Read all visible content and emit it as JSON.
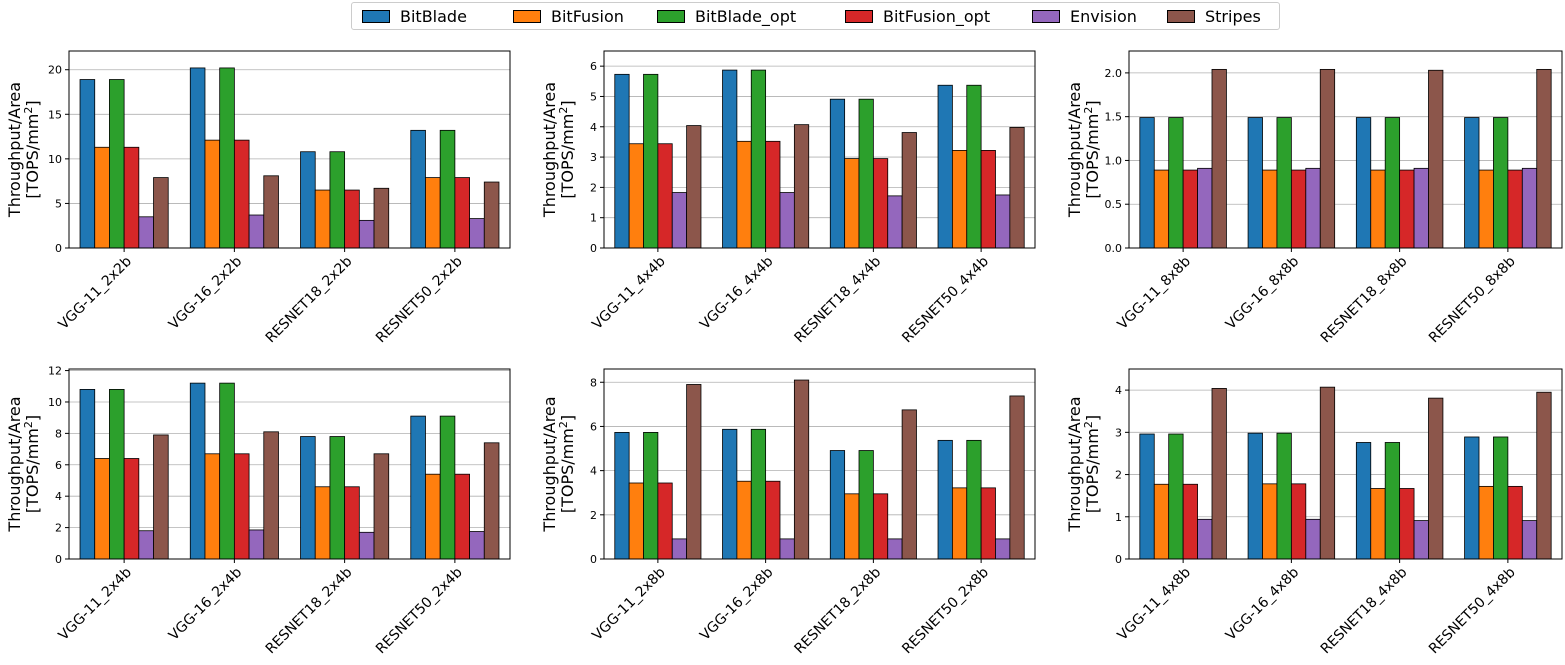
{
  "legend": {
    "items": [
      {
        "label": "BitBlade",
        "color": "#1f77b4"
      },
      {
        "label": "BitFusion",
        "color": "#ff7f0e"
      },
      {
        "label": "BitBlade_opt",
        "color": "#2ca02c"
      },
      {
        "label": "BitFusion_opt",
        "color": "#d62728"
      },
      {
        "label": "Envision",
        "color": "#9467bd"
      },
      {
        "label": "Stripes",
        "color": "#8c564b"
      }
    ]
  },
  "chart_data": [
    {
      "type": "bar",
      "ylabel_line1": "Throughput/Area",
      "ylabel_line2": "[TOPS/mm",
      "ylabel_sup": "2",
      "ylabel_close": "]",
      "categories": [
        "VGG-11_2x2b",
        "VGG-16_2x2b",
        "RESNET18_2x2b",
        "RESNET50_2x2b"
      ],
      "ylim": [
        0,
        22.1
      ],
      "yticks": [
        0,
        5,
        10,
        15,
        20
      ],
      "ytick_labels": [
        "0",
        "5",
        "10",
        "15",
        "20"
      ],
      "grid": true,
      "series": [
        {
          "name": "BitBlade",
          "values": [
            18.9,
            20.2,
            10.8,
            13.2
          ]
        },
        {
          "name": "BitFusion",
          "values": [
            11.3,
            12.1,
            6.5,
            7.9
          ]
        },
        {
          "name": "BitBlade_opt",
          "values": [
            18.9,
            20.2,
            10.8,
            13.2
          ]
        },
        {
          "name": "BitFusion_opt",
          "values": [
            11.3,
            12.1,
            6.5,
            7.9
          ]
        },
        {
          "name": "Envision",
          "values": [
            3.5,
            3.7,
            3.1,
            3.3
          ]
        },
        {
          "name": "Stripes",
          "values": [
            7.9,
            8.1,
            6.7,
            7.4
          ]
        }
      ]
    },
    {
      "type": "bar",
      "ylabel_line1": "Throughput/Area",
      "ylabel_line2": "[TOPS/mm",
      "ylabel_sup": "2",
      "ylabel_close": "]",
      "categories": [
        "VGG-11_4x4b",
        "VGG-16_4x4b",
        "RESNET18_4x4b",
        "RESNET50_4x4b"
      ],
      "ylim": [
        0,
        6.5
      ],
      "yticks": [
        0,
        1,
        2,
        3,
        4,
        5,
        6
      ],
      "ytick_labels": [
        "0",
        "1",
        "2",
        "3",
        "4",
        "5",
        "6"
      ],
      "grid": true,
      "series": [
        {
          "name": "BitBlade",
          "values": [
            5.73,
            5.87,
            4.91,
            5.37
          ]
        },
        {
          "name": "BitFusion",
          "values": [
            3.44,
            3.52,
            2.95,
            3.22
          ]
        },
        {
          "name": "BitBlade_opt",
          "values": [
            5.73,
            5.87,
            4.91,
            5.37
          ]
        },
        {
          "name": "BitFusion_opt",
          "values": [
            3.44,
            3.52,
            2.95,
            3.22
          ]
        },
        {
          "name": "Envision",
          "values": [
            1.83,
            1.83,
            1.72,
            1.75
          ]
        },
        {
          "name": "Stripes",
          "values": [
            4.04,
            4.07,
            3.81,
            3.98
          ]
        }
      ]
    },
    {
      "type": "bar",
      "ylabel_line1": "Throughput/Area",
      "ylabel_line2": "[TOPS/mm",
      "ylabel_sup": "2",
      "ylabel_close": "]",
      "categories": [
        "VGG-11_8x8b",
        "VGG-16_8x8b",
        "RESNET18_8x8b",
        "RESNET50_8x8b"
      ],
      "ylim": [
        0,
        2.25
      ],
      "yticks": [
        0,
        0.5,
        1.0,
        1.5,
        2.0
      ],
      "ytick_labels": [
        "0.0",
        "0.5",
        "1.0",
        "1.5",
        "2.0"
      ],
      "grid": true,
      "series": [
        {
          "name": "BitBlade",
          "values": [
            1.49,
            1.49,
            1.49,
            1.49
          ]
        },
        {
          "name": "BitFusion",
          "values": [
            0.89,
            0.89,
            0.89,
            0.89
          ]
        },
        {
          "name": "BitBlade_opt",
          "values": [
            1.49,
            1.49,
            1.49,
            1.49
          ]
        },
        {
          "name": "BitFusion_opt",
          "values": [
            0.89,
            0.89,
            0.89,
            0.89
          ]
        },
        {
          "name": "Envision",
          "values": [
            0.91,
            0.91,
            0.91,
            0.91
          ]
        },
        {
          "name": "Stripes",
          "values": [
            2.04,
            2.04,
            2.03,
            2.04
          ]
        }
      ]
    },
    {
      "type": "bar",
      "ylabel_line1": "Throughput/Area",
      "ylabel_line2": "[TOPS/mm",
      "ylabel_sup": "2",
      "ylabel_close": "]",
      "categories": [
        "VGG-11_2x4b",
        "VGG-16_2x4b",
        "RESNET18_2x4b",
        "RESNET50_2x4b"
      ],
      "ylim": [
        0,
        12.1
      ],
      "yticks": [
        0,
        2,
        4,
        6,
        8,
        10,
        12
      ],
      "ytick_labels": [
        "0",
        "2",
        "4",
        "6",
        "8",
        "10",
        "12"
      ],
      "grid": true,
      "series": [
        {
          "name": "BitBlade",
          "values": [
            10.8,
            11.2,
            7.8,
            9.1
          ]
        },
        {
          "name": "BitFusion",
          "values": [
            6.4,
            6.7,
            4.6,
            5.4
          ]
        },
        {
          "name": "BitBlade_opt",
          "values": [
            10.8,
            11.2,
            7.8,
            9.1
          ]
        },
        {
          "name": "BitFusion_opt",
          "values": [
            6.4,
            6.7,
            4.6,
            5.4
          ]
        },
        {
          "name": "Envision",
          "values": [
            1.8,
            1.85,
            1.7,
            1.75
          ]
        },
        {
          "name": "Stripes",
          "values": [
            7.9,
            8.1,
            6.7,
            7.4
          ]
        }
      ]
    },
    {
      "type": "bar",
      "ylabel_line1": "Throughput/Area",
      "ylabel_line2": "[TOPS/mm",
      "ylabel_sup": "2",
      "ylabel_close": "]",
      "categories": [
        "VGG-11_2x8b",
        "VGG-16_2x8b",
        "RESNET18_2x8b",
        "RESNET50_2x8b"
      ],
      "ylim": [
        0,
        8.6
      ],
      "yticks": [
        0,
        2,
        4,
        6,
        8
      ],
      "ytick_labels": [
        "0",
        "2",
        "4",
        "6",
        "8"
      ],
      "grid": true,
      "series": [
        {
          "name": "BitBlade",
          "values": [
            5.73,
            5.87,
            4.91,
            5.37
          ]
        },
        {
          "name": "BitFusion",
          "values": [
            3.44,
            3.52,
            2.95,
            3.22
          ]
        },
        {
          "name": "BitBlade_opt",
          "values": [
            5.73,
            5.87,
            4.91,
            5.37
          ]
        },
        {
          "name": "BitFusion_opt",
          "values": [
            3.44,
            3.52,
            2.95,
            3.22
          ]
        },
        {
          "name": "Envision",
          "values": [
            0.91,
            0.91,
            0.91,
            0.91
          ]
        },
        {
          "name": "Stripes",
          "values": [
            7.9,
            8.1,
            6.75,
            7.38
          ]
        }
      ]
    },
    {
      "type": "bar",
      "ylabel_line1": "Throughput/Area",
      "ylabel_line2": "[TOPS/mm",
      "ylabel_sup": "2",
      "ylabel_close": "]",
      "categories": [
        "VGG-11_4x8b",
        "VGG-16_4x8b",
        "RESNET18_4x8b",
        "RESNET50_4x8b"
      ],
      "ylim": [
        0,
        4.5
      ],
      "yticks": [
        0,
        1,
        2,
        3,
        4
      ],
      "ytick_labels": [
        "0",
        "1",
        "2",
        "3",
        "4"
      ],
      "grid": true,
      "series": [
        {
          "name": "BitBlade",
          "values": [
            2.96,
            2.98,
            2.76,
            2.89
          ]
        },
        {
          "name": "BitFusion",
          "values": [
            1.77,
            1.78,
            1.67,
            1.72
          ]
        },
        {
          "name": "BitBlade_opt",
          "values": [
            2.96,
            2.98,
            2.76,
            2.89
          ]
        },
        {
          "name": "BitFusion_opt",
          "values": [
            1.77,
            1.78,
            1.67,
            1.72
          ]
        },
        {
          "name": "Envision",
          "values": [
            0.94,
            0.94,
            0.91,
            0.91
          ]
        },
        {
          "name": "Stripes",
          "values": [
            4.04,
            4.07,
            3.81,
            3.95
          ]
        }
      ]
    }
  ]
}
